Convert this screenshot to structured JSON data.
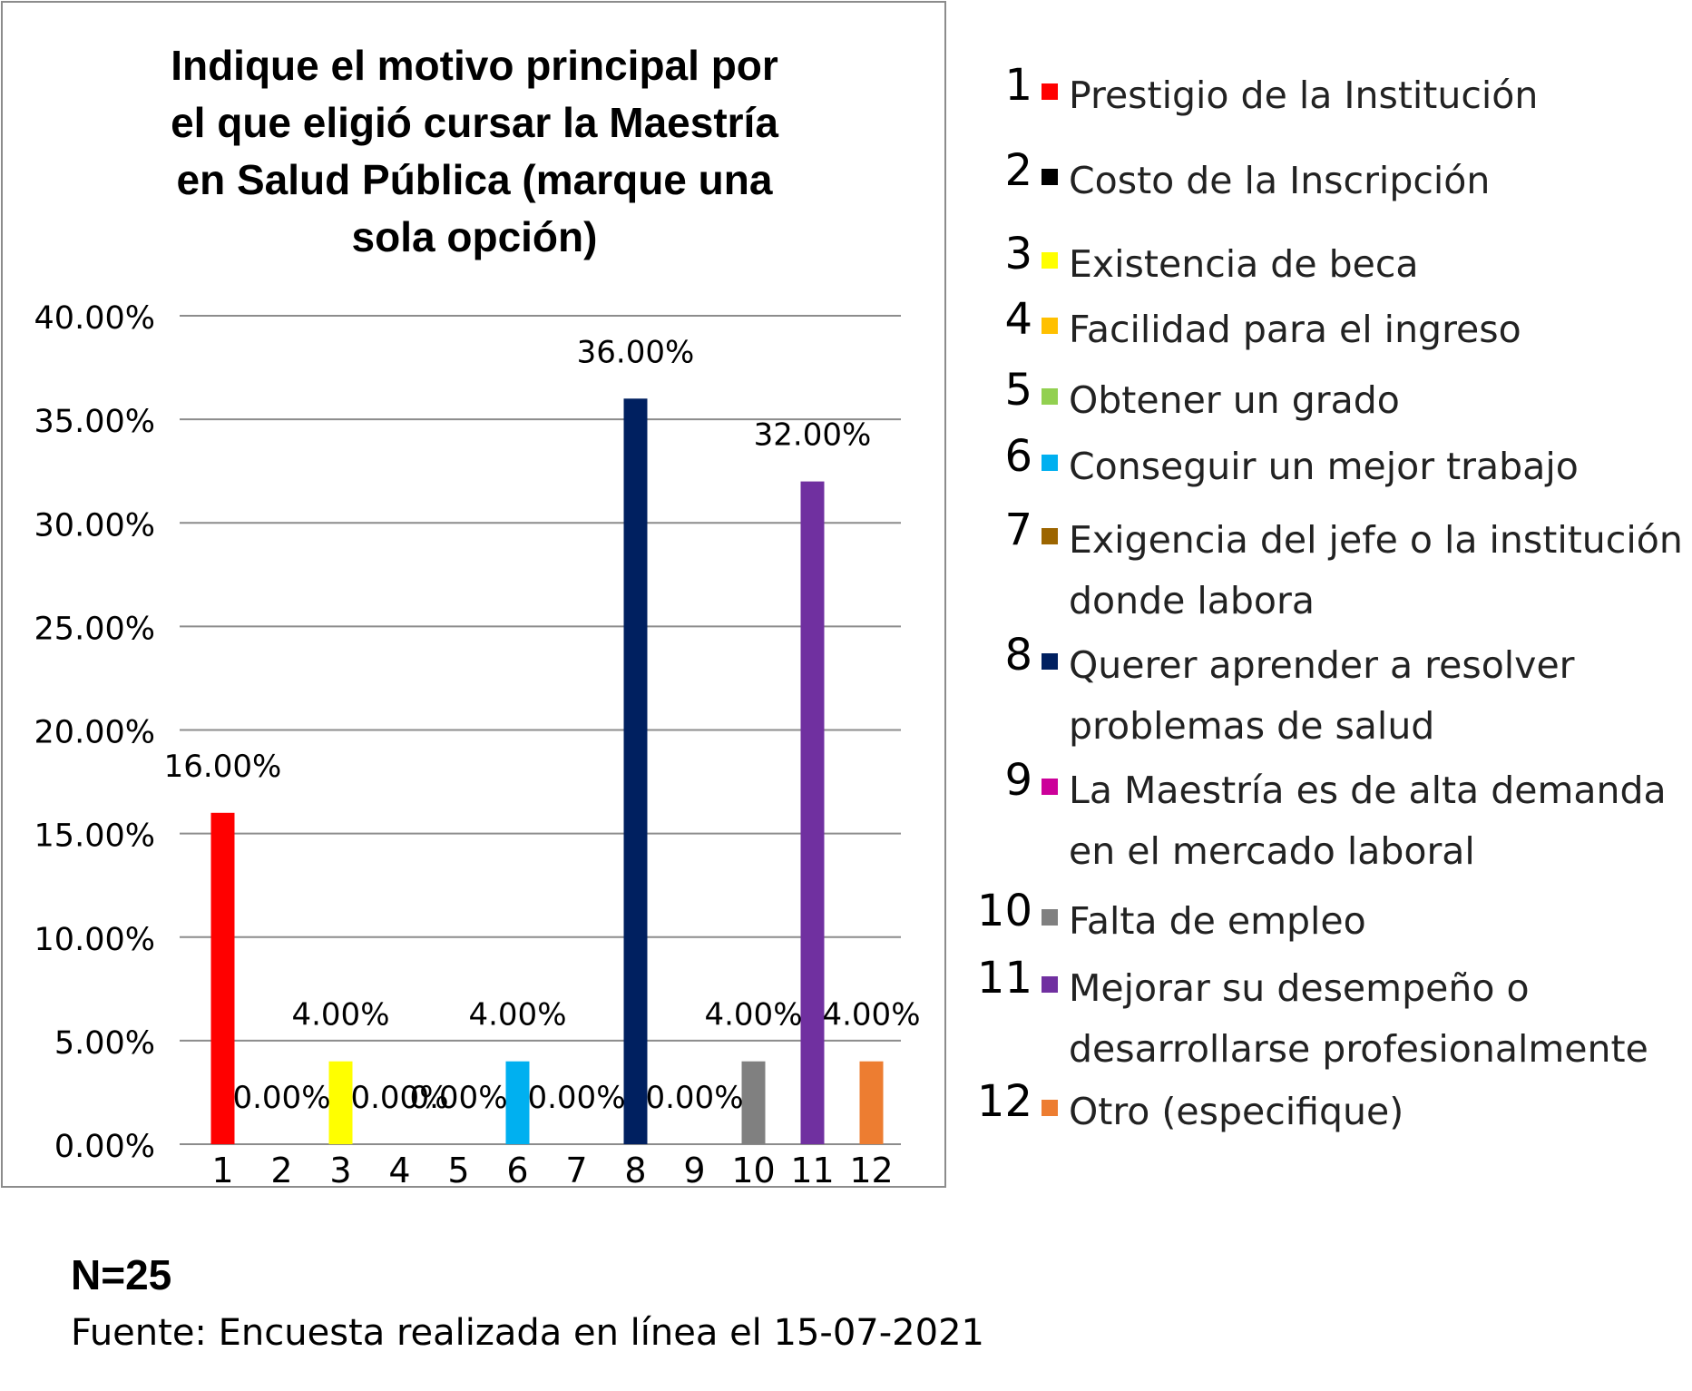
{
  "chart_data": {
    "type": "bar",
    "title": "Indique el motivo principal por el que eligió cursar la Maestría en Salud Pública (marque una sola opción)",
    "title_lines": [
      "Indique el motivo principal por",
      "el que eligió cursar la Maestría",
      "en Salud Pública (marque una",
      "sola opción)"
    ],
    "categories": [
      "1",
      "2",
      "3",
      "4",
      "5",
      "6",
      "7",
      "8",
      "9",
      "10",
      "11",
      "12"
    ],
    "values": [
      16,
      0,
      4,
      0,
      0,
      4,
      0,
      36,
      0,
      4,
      32,
      4
    ],
    "data_labels": [
      "16.00%",
      "0.00%",
      "4.00%",
      "0.00%",
      "0.00%",
      "4.00%",
      "0.00%",
      "36.00%",
      "0.00%",
      "4.00%",
      "32.00%",
      "4.00%"
    ],
    "colors": [
      "#ff0000",
      "#000000",
      "#ffff00",
      "#ffc000",
      "#92d050",
      "#00b0f0",
      "#9c6500",
      "#002060",
      "#cc0099",
      "#808080",
      "#7030a0",
      "#ed7d31"
    ],
    "yticks": [
      "0.00%",
      "5.00%",
      "10.00%",
      "15.00%",
      "20.00%",
      "25.00%",
      "30.00%",
      "35.00%",
      "40.00%"
    ],
    "ylim": [
      0,
      40
    ],
    "ytick_step": 5,
    "grid": true,
    "legend_position": "right",
    "xlabel": "",
    "ylabel": ""
  },
  "legend": {
    "items": [
      {
        "num": "1",
        "label": "Prestigio de la Institución",
        "color": "#ff0000"
      },
      {
        "num": "2",
        "label": "Costo de la Inscripción",
        "color": "#000000"
      },
      {
        "num": "3",
        "label": "Existencia de beca",
        "color": "#ffff00"
      },
      {
        "num": "4",
        "label": "Facilidad para el ingreso",
        "color": "#ffc000"
      },
      {
        "num": "5",
        "label": "Obtener un grado",
        "color": "#92d050"
      },
      {
        "num": "6",
        "label": "Conseguir un mejor trabajo",
        "color": "#00b0f0"
      },
      {
        "num": "7",
        "label": "Exigencia del jefe o la institución donde labora",
        "color": "#9c6500"
      },
      {
        "num": "8",
        "label": "Querer aprender a resolver problemas de salud",
        "color": "#002060"
      },
      {
        "num": "9",
        "label": "La Maestría es de alta demanda en el mercado laboral",
        "color": "#cc0099"
      },
      {
        "num": "10",
        "label": "Falta de empleo",
        "color": "#808080"
      },
      {
        "num": "11",
        "label": "Mejorar su desempeño o desarrollarse profesionalmente",
        "color": "#7030a0"
      },
      {
        "num": "12",
        "label": "Otro (especifique)",
        "color": "#ed7d31"
      }
    ]
  },
  "footer": {
    "n": "N=25",
    "source": "Fuente: Encuesta realizada en línea el 15-07-2021"
  }
}
